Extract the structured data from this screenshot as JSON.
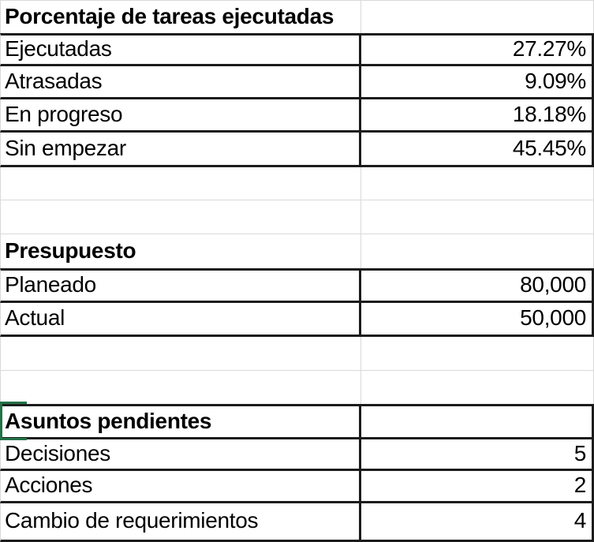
{
  "app": {
    "kind": "spreadsheet-range"
  },
  "table": {
    "sections": [
      {
        "title": "Porcentaje de tareas ejecutadas",
        "rows": [
          {
            "label": "Ejecutadas",
            "value": "27.27%"
          },
          {
            "label": "Atrasadas",
            "value": "9.09%"
          },
          {
            "label": "En progreso",
            "value": "18.18%"
          },
          {
            "label": "Sin empezar",
            "value": "45.45%"
          }
        ]
      },
      {
        "title": "Presupuesto",
        "rows": [
          {
            "label": "Planeado",
            "value": "80,000"
          },
          {
            "label": "Actual",
            "value": "50,000"
          }
        ]
      },
      {
        "title": "Asuntos pendientes",
        "rows": [
          {
            "label": "Decisiones",
            "value": "5"
          },
          {
            "label": "Acciones",
            "value": "2"
          },
          {
            "label": "Cambio de requerimientos",
            "value": "4"
          }
        ]
      }
    ],
    "selected_cell_section": "Asuntos pendientes"
  },
  "colors": {
    "cell_border": "#1c1c1c",
    "gridline": "#dadada",
    "selection_green": "#217346",
    "text": "#000000",
    "background": "#ffffff"
  }
}
